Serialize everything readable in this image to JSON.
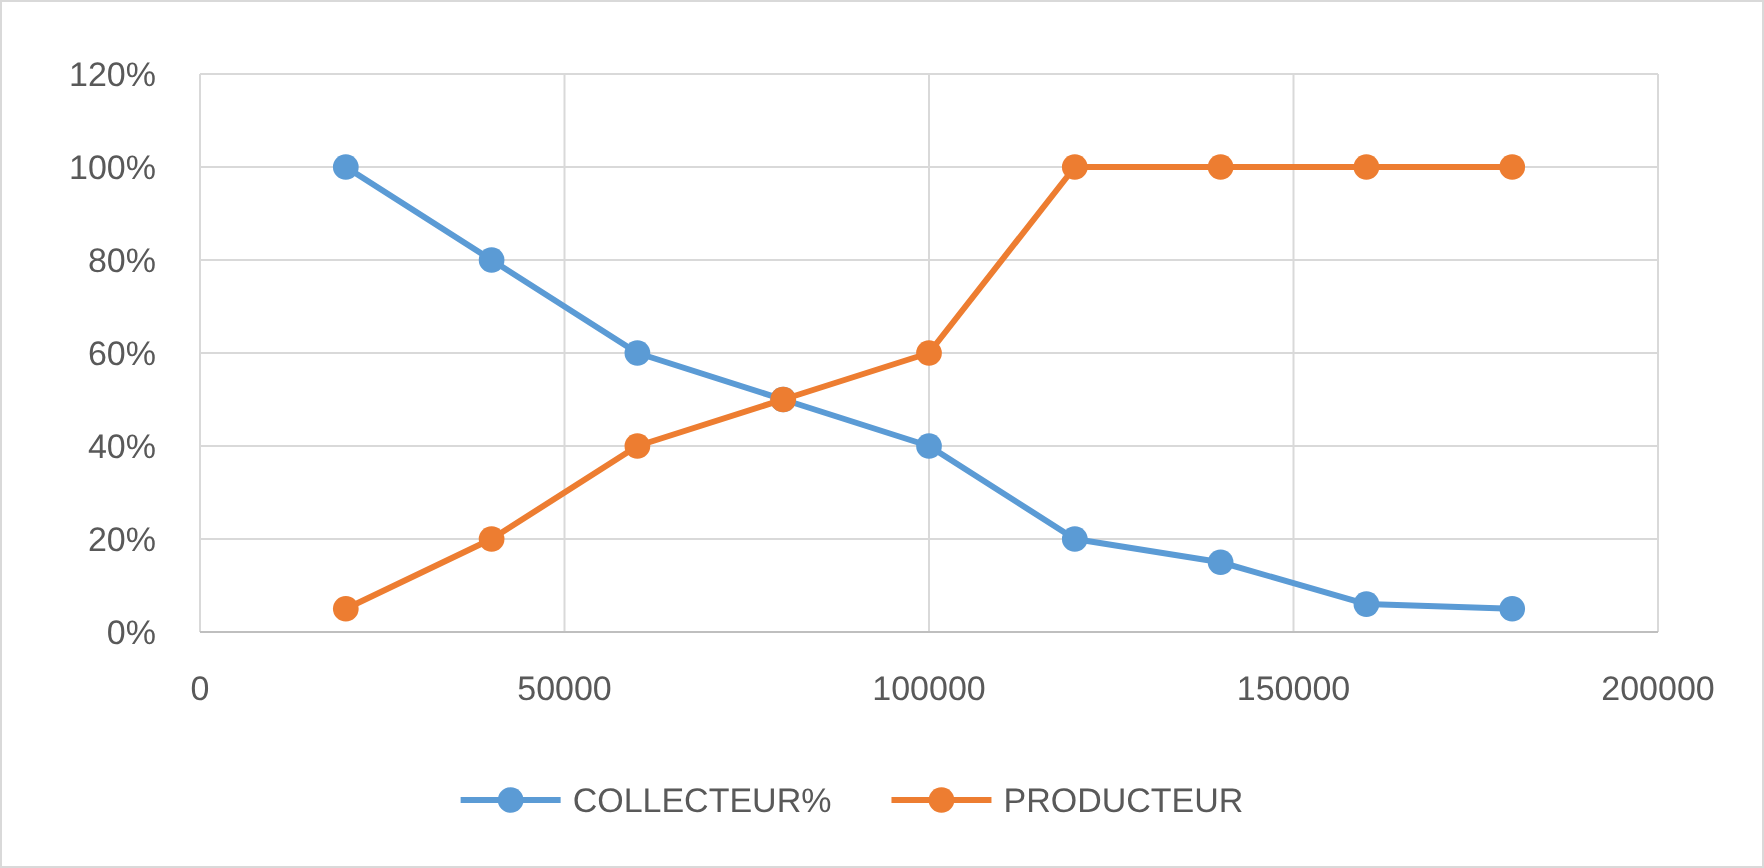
{
  "chart_data": {
    "type": "line",
    "x": [
      20000,
      40000,
      60000,
      80000,
      100000,
      120000,
      140000,
      160000,
      180000
    ],
    "series": [
      {
        "name": "COLLECTEUR%",
        "color": "#5b9bd5",
        "values": [
          100,
          80,
          60,
          50,
          40,
          20,
          15,
          6,
          5
        ]
      },
      {
        "name": "PRODUCTEUR",
        "color": "#ed7d31",
        "values": [
          5,
          20,
          40,
          50,
          60,
          100,
          100,
          100,
          100
        ]
      }
    ],
    "xlim": [
      0,
      200000
    ],
    "xticks": [
      0,
      50000,
      100000,
      150000,
      200000
    ],
    "ylim": [
      0,
      120
    ],
    "yticks": [
      {
        "value": 0,
        "label": "0%"
      },
      {
        "value": 20,
        "label": "20%"
      },
      {
        "value": 40,
        "label": "40%"
      },
      {
        "value": 60,
        "label": "60%"
      },
      {
        "value": 80,
        "label": "80%"
      },
      {
        "value": 100,
        "label": "100%"
      },
      {
        "value": 120,
        "label": "120%"
      }
    ],
    "grid": true,
    "legend": "bottom",
    "marker": "circle",
    "line_style": "solid"
  }
}
